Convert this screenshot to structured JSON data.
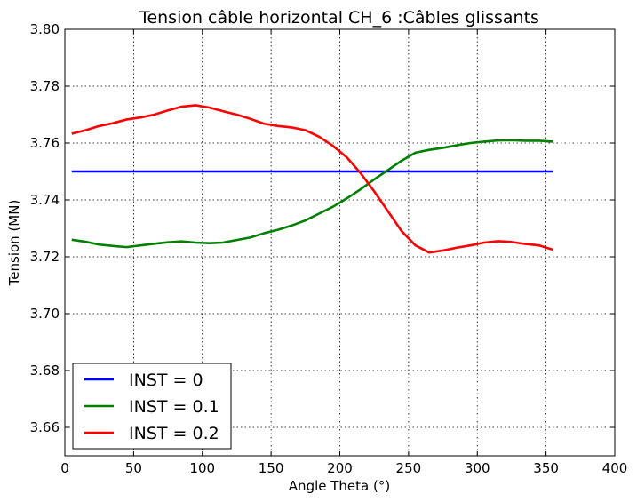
{
  "chart_data": {
    "type": "line",
    "title": "Tension câble horizontal CH_6 :Câbles glissants",
    "xlabel": "Angle Theta (°)",
    "ylabel": "Tension (MN)",
    "xlim": [
      0,
      400
    ],
    "ylim": [
      3.65,
      3.8
    ],
    "xticks": [
      0,
      50,
      100,
      150,
      200,
      250,
      300,
      350,
      400
    ],
    "yticks": [
      3.66,
      3.68,
      3.7,
      3.72,
      3.74,
      3.76,
      3.78,
      3.8
    ],
    "xtick_labels": [
      "0",
      "50",
      "100",
      "150",
      "200",
      "250",
      "300",
      "350",
      "400"
    ],
    "ytick_labels": [
      "3.66",
      "3.68",
      "3.70",
      "3.72",
      "3.74",
      "3.76",
      "3.78",
      "3.80"
    ],
    "grid": true,
    "legend_position": "lower-left",
    "series": [
      {
        "name": "INST = 0",
        "color": "#0000ff",
        "x": [
          5,
          355
        ],
        "y": [
          3.75,
          3.75
        ]
      },
      {
        "name": "INST = 0.1",
        "color": "#008000",
        "x": [
          5,
          15,
          25,
          35,
          45,
          55,
          65,
          75,
          85,
          95,
          105,
          115,
          125,
          135,
          145,
          155,
          165,
          175,
          185,
          195,
          205,
          215,
          225,
          235,
          245,
          255,
          265,
          275,
          285,
          295,
          305,
          315,
          325,
          335,
          345,
          355
        ],
        "y": [
          3.726,
          3.7253,
          3.7243,
          3.7238,
          3.7234,
          3.724,
          3.7246,
          3.7251,
          3.7254,
          3.725,
          3.7248,
          3.725,
          3.7259,
          3.7268,
          3.7283,
          3.7295,
          3.731,
          3.7328,
          3.7352,
          3.7376,
          3.7405,
          3.7437,
          3.7472,
          3.7505,
          3.7538,
          3.7566,
          3.7576,
          3.7583,
          3.7592,
          3.76,
          3.7605,
          3.7609,
          3.761,
          3.7608,
          3.7608,
          3.7605
        ]
      },
      {
        "name": "INST = 0.2",
        "color": "#ff0000",
        "x": [
          5,
          15,
          25,
          35,
          45,
          55,
          65,
          75,
          85,
          95,
          105,
          115,
          125,
          135,
          145,
          155,
          165,
          175,
          185,
          195,
          205,
          215,
          225,
          235,
          245,
          255,
          265,
          275,
          285,
          295,
          305,
          315,
          325,
          335,
          345,
          355
        ],
        "y": [
          3.7633,
          3.7645,
          3.766,
          3.767,
          3.7683,
          3.769,
          3.77,
          3.7715,
          3.7728,
          3.7733,
          3.7725,
          3.7712,
          3.77,
          3.7685,
          3.7668,
          3.766,
          3.7655,
          3.7645,
          3.7622,
          3.759,
          3.755,
          3.7495,
          3.743,
          3.736,
          3.729,
          3.724,
          3.7215,
          3.7222,
          3.7232,
          3.724,
          3.725,
          3.7255,
          3.7252,
          3.7245,
          3.724,
          3.7225
        ]
      }
    ]
  }
}
